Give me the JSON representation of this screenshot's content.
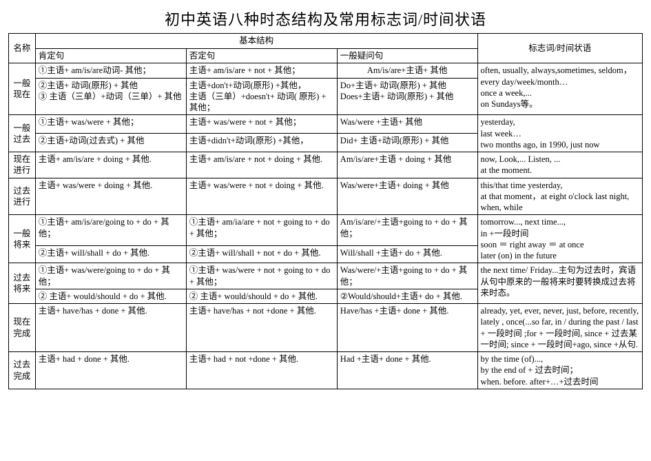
{
  "title": "初中英语八种时态结构及常用标志词/时间状语",
  "header": {
    "name": "名称",
    "basic": "基本结构",
    "marker": "标志词/时间状语",
    "aff": "肯定句",
    "neg": "否定句",
    "q": "一般疑问句"
  },
  "tenses": {
    "t1": {
      "name": "一般现在",
      "r1_aff": "①主语+ am/is/are动词- 其他；",
      "r1_neg": "主语+ am/is/are + not + 其他；",
      "r1_q": "Am/is/are+主语+ 其他",
      "r2_aff": "②主语+ 动词(原形)  + 其他\n③ 主语（三单）+动词（三单）+ 其他",
      "r2_neg": "主语+don't+动词(原形)  +其他，\n主语（三单）+doesn't+ 动词( 原形)  + 其他；",
      "r2_q": "Do+主语+ 动词(原形)  + 其他\nDoes+主语+ 动词(原形)  + 其他",
      "marker": "often, usually, always,sometimes, seldom，every day/week/month…\nonce a week,...\n on Sundays等。"
    },
    "t2": {
      "name": "一般过去",
      "r1_aff": "①主语+ was/were  + 其他；",
      "r1_neg": "主语+ was/were + not + 其他；",
      "r1_q": "Was/were +主语+  其他",
      "r2_aff": "②主语+动词(过去式)  + 其他",
      "r2_neg": "主语+didn't+动词(原形)  +其他，",
      "r2_q": "Did+ 主语+动词(原形)  + 其他",
      "marker": "yesterday,\nlast week…\ntwo months ago, in 1990, just now"
    },
    "t3": {
      "name": "现在进行",
      "aff": "主语+ am/is/are + doing + 其他.",
      "neg": "主语+ am/is/are + not + doing + 其他.",
      "q": "Am/is/are+主语 + doing + 其他",
      "marker": "now,  Look,... Listen, ...\nat the moment."
    },
    "t4": {
      "name": "过去进行",
      "aff": "主语+ was/were + doing + 其他.",
      "neg": "主语+ was/were + not + doing + 其他.",
      "q": "Was/were+主语+ doing + 其他",
      "marker": "this/that time yesterday,\n at that moment，at eight o'clock last night, when, while"
    },
    "t5": {
      "name": "一般将来",
      "r1_aff": "①主语+ am/is/are/going to + do + 其他；",
      "r1_neg": "①主语+ am/ia/are + not + going to + do + 其他；",
      "r1_q": "Am/is/are/+主语+going to + do + 其他；",
      "r2_aff": "②主语+ will/shall + do + 其他.",
      "r2_neg": "②主语+ will/shall + not + do + 其他.",
      "r2_q": "Will/shall +主语+ do + 其他.",
      "marker": "tomorrow..., next time...,\nin +一段时间\nsoon ＝ right away ＝ at once\nlater (on)  in the future"
    },
    "t6": {
      "name": "过去将来",
      "r1_aff": "①主语+ was/were/going to + do + 其他；",
      "r1_neg": "①主语+ was/were + not + going to + do + 其他；",
      "r1_q": "Was/were/+主语+going to + do + 其他；",
      "r2_aff": "② 主语+ would/should + do + 其他.",
      "r2_neg": "② 主语+ would/should + do + 其他.",
      "r2_q": "②Would/should+主语+ do + 其他.",
      "marker": "the next time/ Friday...主句为过去时，宾语从句中原来的一般将来时要转换成过去将来时态。"
    },
    "t7": {
      "name": "现在完成",
      "aff": "主语+ have/has + done + 其他.",
      "neg": "主语+ have/has + not +done + 其他.",
      "q": "Have/has +主语+ done + 其他.",
      "marker": "already, yet, ever, never, just, before, recently, lately , once(...so far, in / during the past / last + 一段时间 ;for + 一段时间, since + 过去某一时间; since + 一段时间+ago, since +从句."
    },
    "t8": {
      "name": "过去完成",
      "aff": "主语+ had + done + 其他.",
      "neg": "主语+ had + not +done + 其他.",
      "q": "Had +主语+ done + 其他.",
      "marker": "by the time (of)...,\n by the end of + 过去时间；\nwhen. before. after+…+过去时间"
    }
  }
}
